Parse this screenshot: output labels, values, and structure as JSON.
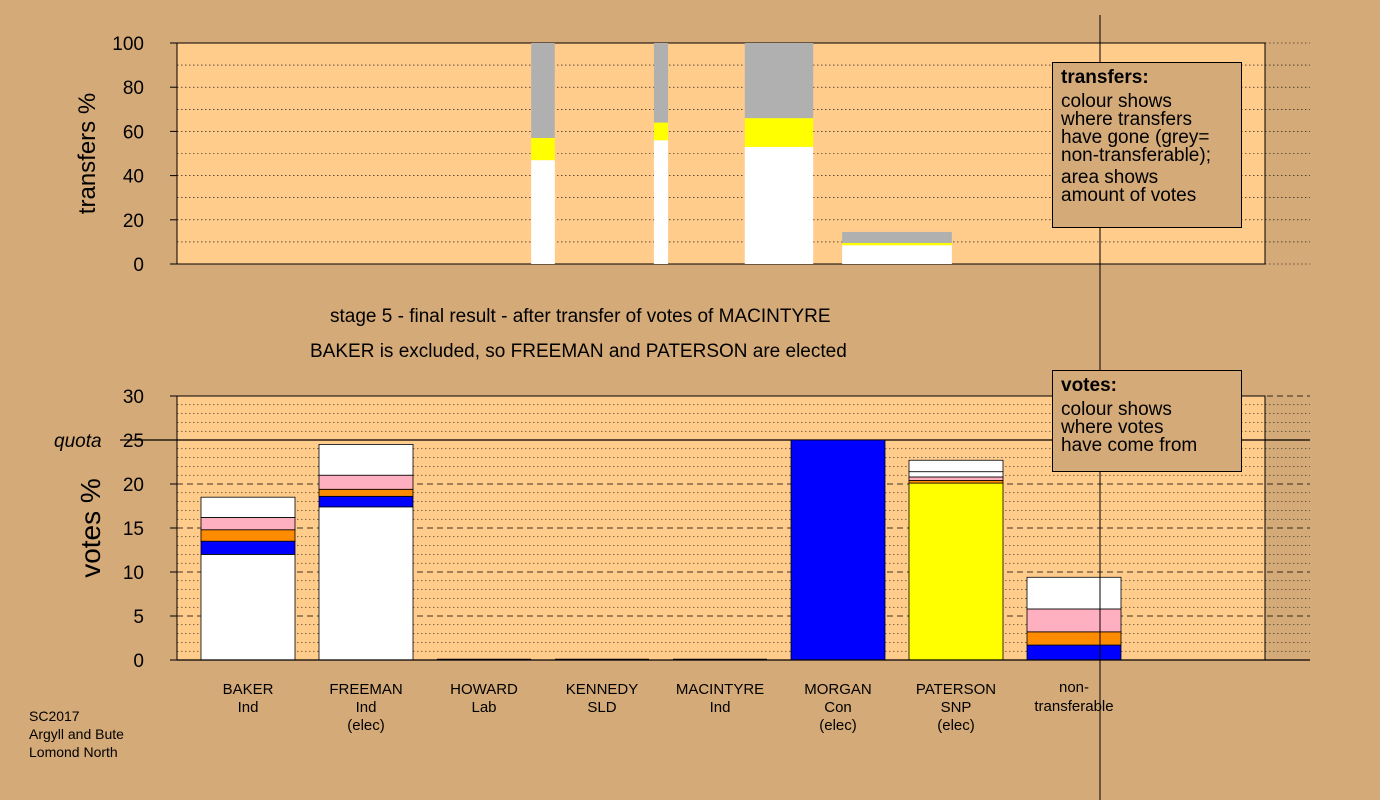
{
  "candidates": [
    {
      "name": "BAKER",
      "party": "Ind",
      "status": ""
    },
    {
      "name": "FREEMAN",
      "party": "Ind",
      "status": "(elec)"
    },
    {
      "name": "HOWARD",
      "party": "Lab",
      "status": ""
    },
    {
      "name": "KENNEDY",
      "party": "SLD",
      "status": ""
    },
    {
      "name": "MACINTYRE",
      "party": "Ind",
      "status": ""
    },
    {
      "name": "MORGAN",
      "party": "Con",
      "status": "(elec)"
    },
    {
      "name": "PATERSON",
      "party": "SNP",
      "status": "(elec)"
    }
  ],
  "nontransferable": {
    "line1": "non-",
    "line2": "transferable"
  },
  "captions": {
    "stage": "stage 5 - final result - after transfer of votes of MACINTYRE",
    "result": "BAKER is excluded, so FREEMAN and PATERSON are elected"
  },
  "legend_transfers": {
    "title": "transfers:",
    "lines": [
      "colour shows",
      "where transfers",
      "have gone (grey=",
      "non-transferable);",
      "area shows",
      "amount of votes"
    ]
  },
  "legend_votes": {
    "title": "votes:",
    "lines": [
      "colour shows",
      "where votes",
      "have come from"
    ]
  },
  "footer": {
    "line1": "SC2017",
    "line2": "Argyll and Bute",
    "line3": "Lomond North"
  },
  "colors": {
    "background": "#d4aa78",
    "plot_bg": "#ffcc8c",
    "white": "#ffffff",
    "blue": "#0000ff",
    "orange": "#ff8c00",
    "pink": "#ffb0c0",
    "yellow": "#ffff00",
    "grey": "#b0b0b0"
  },
  "chart_data": [
    {
      "type": "bar",
      "chart": "transfers",
      "ylabel": "transfers %",
      "ylim": [
        0,
        100
      ],
      "yticks": [
        0,
        20,
        40,
        60,
        80,
        100
      ],
      "bars": [
        {
          "center": 2.5,
          "width": 0.2,
          "segments": [
            {
              "color": "white",
              "value": 47
            },
            {
              "color": "yellow",
              "value": 10
            },
            {
              "color": "grey",
              "value": 43
            }
          ]
        },
        {
          "center": 3.5,
          "width": 0.12,
          "segments": [
            {
              "color": "white",
              "value": 56
            },
            {
              "color": "yellow",
              "value": 8
            },
            {
              "color": "grey",
              "value": 36
            }
          ]
        },
        {
          "center": 4.5,
          "width": 0.58,
          "segments": [
            {
              "color": "white",
              "value": 53
            },
            {
              "color": "yellow",
              "value": 13
            },
            {
              "color": "grey",
              "value": 34
            }
          ]
        },
        {
          "center": 5.5,
          "width": 0.93,
          "segments": [
            {
              "color": "white",
              "value": 8.5
            },
            {
              "color": "yellow",
              "value": 1
            },
            {
              "color": "grey",
              "value": 5
            }
          ]
        }
      ]
    },
    {
      "type": "bar",
      "chart": "votes",
      "ylabel": "votes %",
      "ylim": [
        0,
        30
      ],
      "yticks": [
        0,
        5,
        10,
        15,
        20,
        25,
        30
      ],
      "quota": 25,
      "quota_label": "quota",
      "bars": [
        {
          "label": "BAKER",
          "segments": [
            {
              "color": "white",
              "value": 12
            },
            {
              "color": "blue",
              "value": 1.5
            },
            {
              "color": "orange",
              "value": 1.3
            },
            {
              "color": "pink",
              "value": 1.4
            },
            {
              "color": "white",
              "value": 2.3
            }
          ]
        },
        {
          "label": "FREEMAN",
          "segments": [
            {
              "color": "white",
              "value": 17.4
            },
            {
              "color": "blue",
              "value": 1.2
            },
            {
              "color": "orange",
              "value": 0.8
            },
            {
              "color": "pink",
              "value": 1.6
            },
            {
              "color": "white",
              "value": 3.5
            }
          ]
        },
        {
          "label": "HOWARD",
          "segments": []
        },
        {
          "label": "KENNEDY",
          "segments": []
        },
        {
          "label": "MACINTYRE",
          "segments": []
        },
        {
          "label": "MORGAN",
          "segments": [
            {
              "color": "blue",
              "value": 25
            }
          ]
        },
        {
          "label": "PATERSON",
          "segments": [
            {
              "color": "yellow",
              "value": 20.1
            },
            {
              "color": "orange",
              "value": 0.3
            },
            {
              "color": "pink",
              "value": 0.4
            },
            {
              "color": "white",
              "value": 0.6
            },
            {
              "color": "white",
              "value": 1.3
            }
          ]
        },
        {
          "label": "non-transferable",
          "segments": [
            {
              "color": "blue",
              "value": 1.7
            },
            {
              "color": "orange",
              "value": 1.5
            },
            {
              "color": "pink",
              "value": 2.6
            },
            {
              "color": "white",
              "value": 3.6
            }
          ]
        }
      ]
    }
  ]
}
